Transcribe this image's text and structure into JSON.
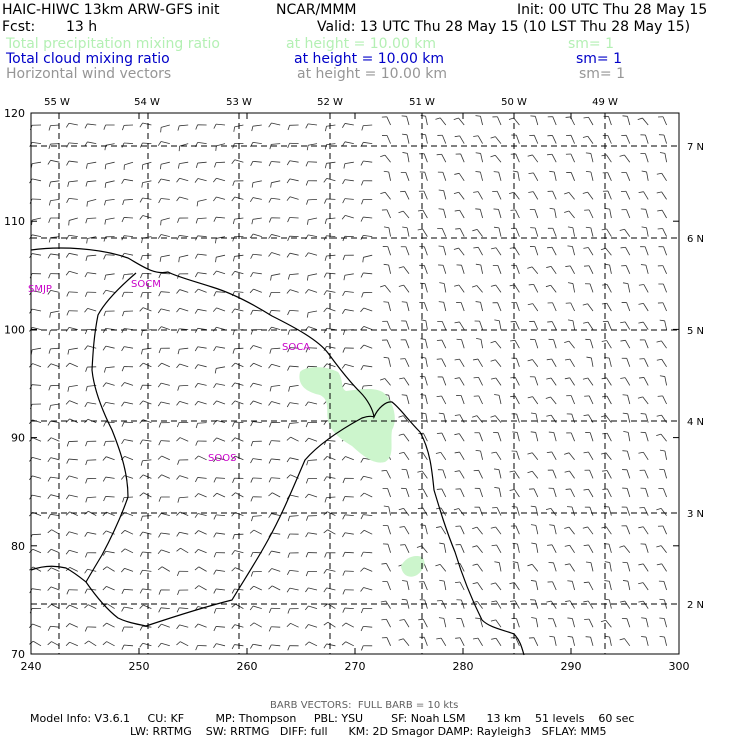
{
  "header": {
    "model_title": "HAIC-HIWC 13km ARW-GFS init",
    "org": "NCAR/MMM",
    "init_time": "Init: 00 UTC Thu 28 May 15",
    "fcst_label": "Fcst:",
    "fcst_hours": "13 h",
    "valid_time": "Valid: 13 UTC Thu 28 May 15 (10 LST Thu 28 May 15)",
    "fields": [
      {
        "name": "Total precipitation mixing ratio",
        "level": "at height = 10.00 km",
        "smoothing": "sm= 1",
        "color": "#b4f0b4"
      },
      {
        "name": "Total cloud mixing ratio",
        "level": "at height = 10.00 km",
        "smoothing": "sm= 1",
        "color": "#0000c8"
      },
      {
        "name": "Horizontal wind vectors",
        "level": "at height = 10.00 km",
        "smoothing": "sm= 1",
        "color": "#969696"
      }
    ]
  },
  "map": {
    "x_ticks": [
      "240",
      "250",
      "260",
      "270",
      "280",
      "290",
      "300"
    ],
    "y_ticks": [
      "70",
      "80",
      "90",
      "100",
      "110",
      "120"
    ],
    "lon_labels": [
      "55 W",
      "54 W",
      "53 W",
      "52 W",
      "51 W",
      "50 W",
      "49 W"
    ],
    "lat_labels": [
      "7 N",
      "6 N",
      "5 N",
      "4 N",
      "3 N",
      "2 N"
    ],
    "stations": [
      "SMJP",
      "SOCM",
      "SOCA",
      "SOOS"
    ],
    "station_color": "#c800c8",
    "precip_color": "#ccf5cc",
    "line_color": "#000000"
  },
  "footer": {
    "barb_note": "BARB VECTORS:  FULL BARB = 10 kts",
    "model_info_line1": "Model Info: V3.6.1     CU: KF         MP: Thompson     PBL: YSU        SF: Noah LSM      13 km    51 levels    60 sec",
    "model_info_line2": "LW: RRTMG    SW: RRTMG   DIFF: full      KM: 2D Smagor DAMP: Rayleigh3   SFLAY: MM5"
  }
}
